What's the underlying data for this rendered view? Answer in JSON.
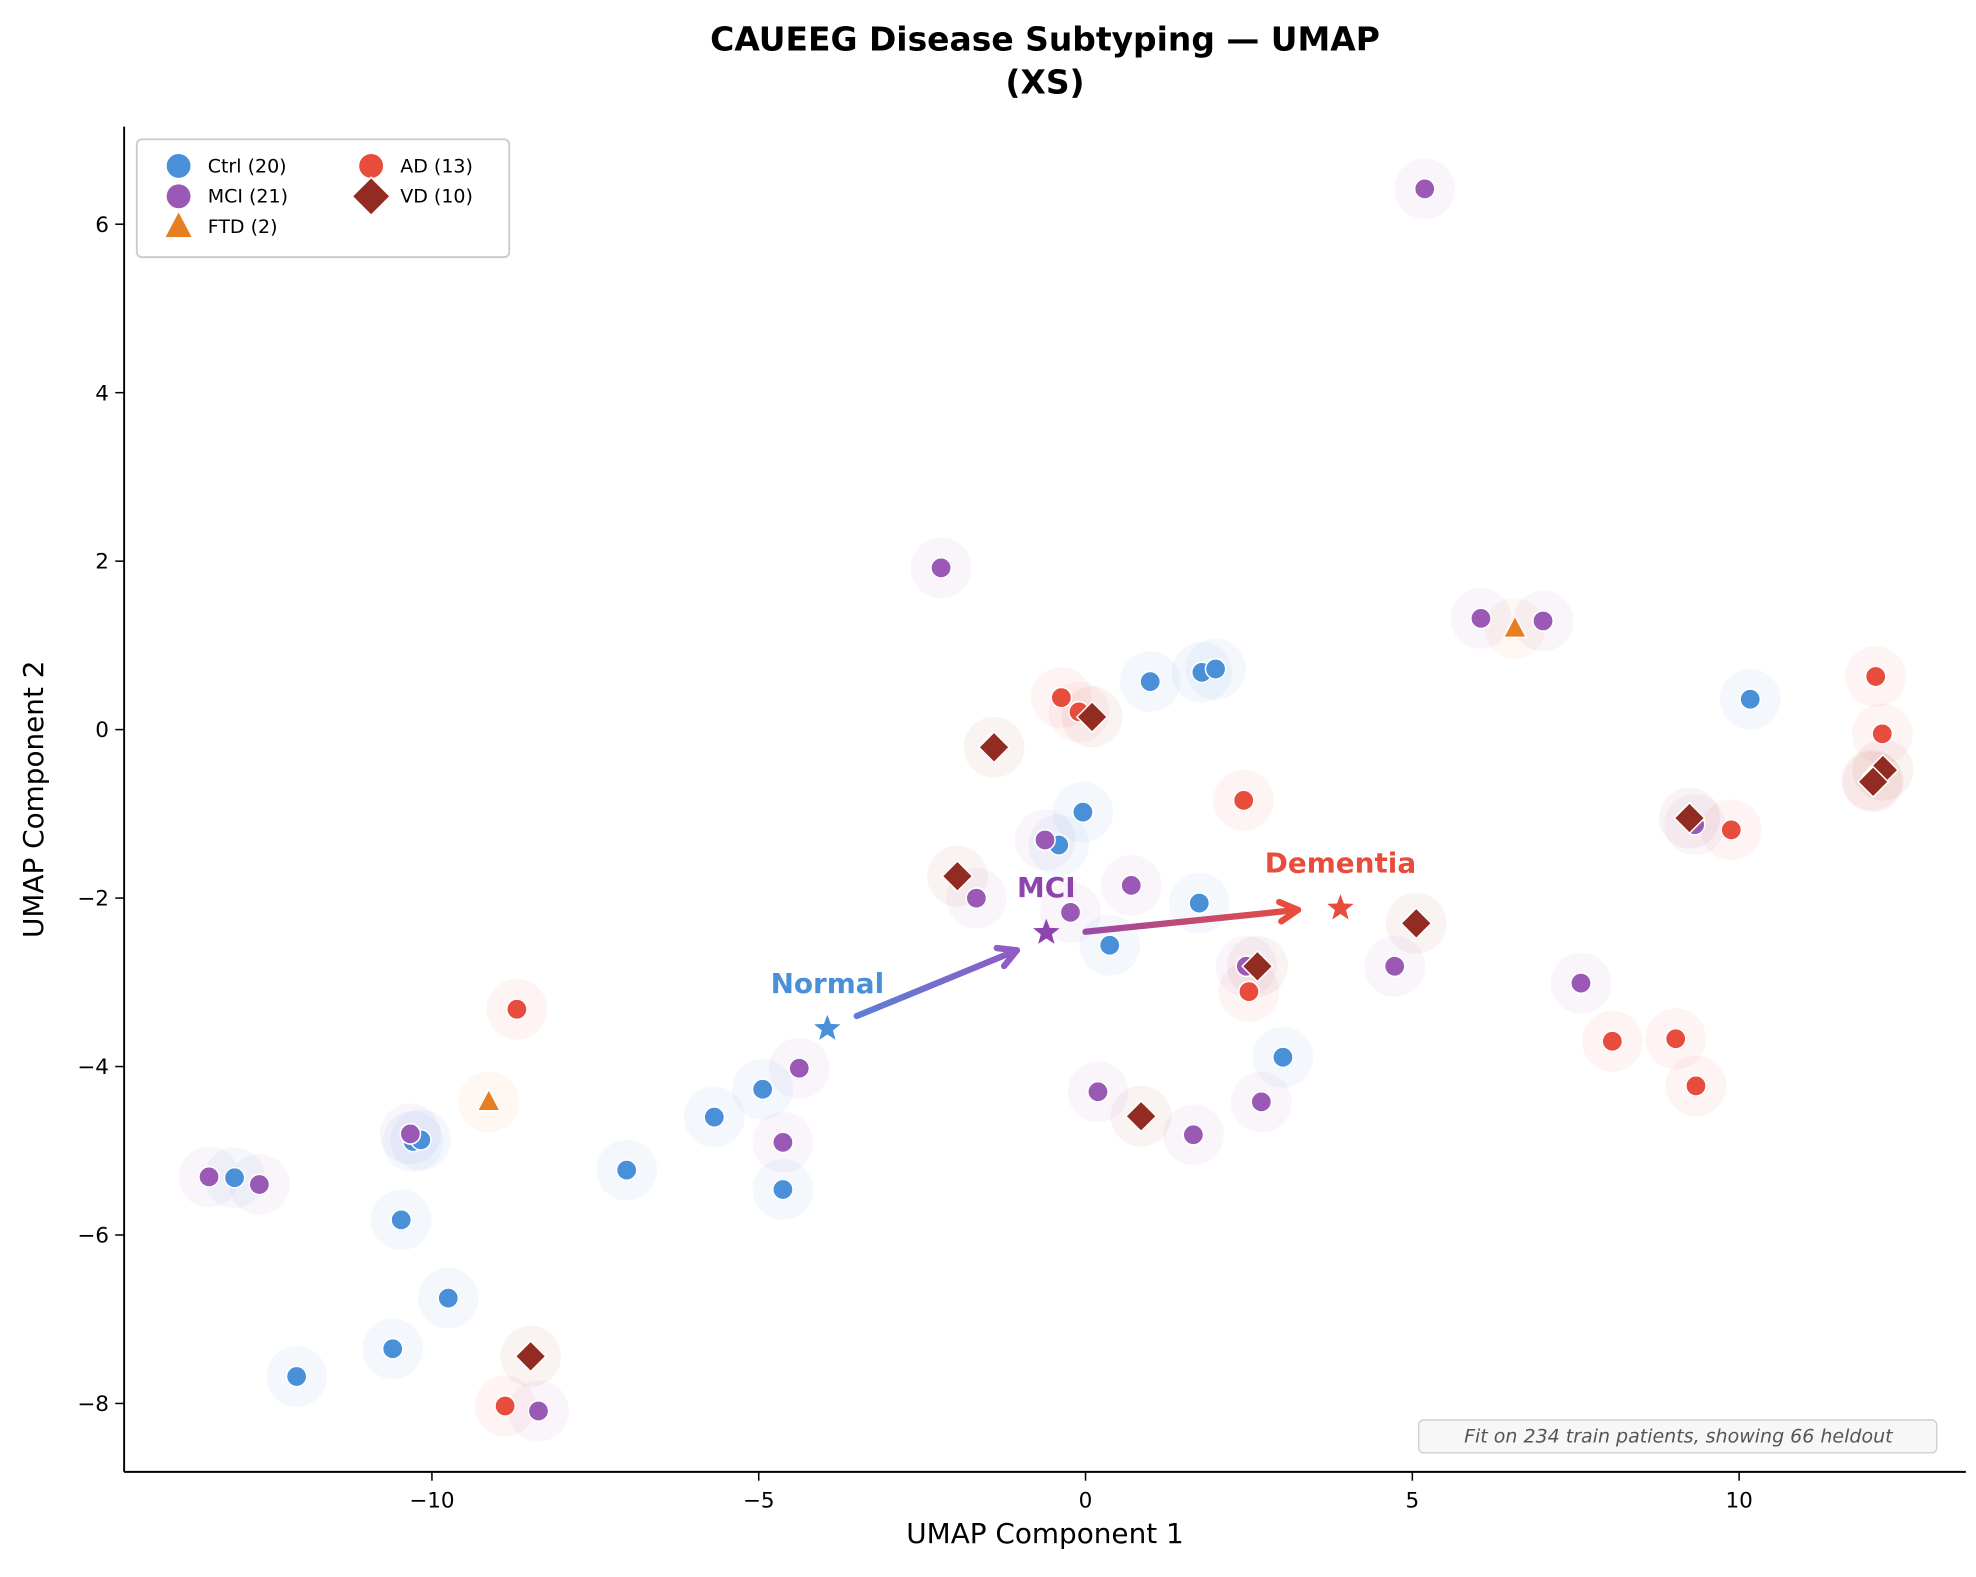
{
  "chart_data": {
    "type": "scatter",
    "title": "CAUEEG Disease Subtyping — UMAP",
    "subtitle": "(XS)",
    "xlabel": "UMAP Component 1",
    "ylabel": "UMAP Component 2",
    "xlim": [
      -14.7,
      13.5
    ],
    "ylim": [
      -8.8,
      7.15
    ],
    "xticks": [
      -10,
      -5,
      0,
      5,
      10
    ],
    "yticks": [
      -8,
      -6,
      -4,
      -2,
      0,
      2,
      4,
      6
    ],
    "xtick_labels": [
      "−10",
      "−5",
      "0",
      "5",
      "10"
    ],
    "ytick_labels": [
      "−8",
      "−6",
      "−4",
      "−2",
      "0",
      "2",
      "4",
      "6"
    ],
    "grid": false,
    "legend_position": "top-left",
    "series": [
      {
        "name": "Ctrl (20)",
        "marker": "circle",
        "color": "#4a90d9",
        "points": [
          [
            10.17,
            0.36
          ],
          [
            0.99,
            0.57
          ],
          [
            1.78,
            0.68
          ],
          [
            1.99,
            0.72
          ],
          [
            -0.04,
            -0.98
          ],
          [
            -0.41,
            -1.37
          ],
          [
            1.74,
            -2.06
          ],
          [
            0.37,
            -2.56
          ],
          [
            3.02,
            -3.89
          ],
          [
            -4.94,
            -4.27
          ],
          [
            -5.68,
            -4.6
          ],
          [
            -10.29,
            -4.89
          ],
          [
            -10.17,
            -4.87
          ],
          [
            -13.02,
            -5.32
          ],
          [
            -7.02,
            -5.23
          ],
          [
            -4.63,
            -5.46
          ],
          [
            -10.47,
            -5.82
          ],
          [
            -9.75,
            -6.75
          ],
          [
            -10.6,
            -7.35
          ],
          [
            -12.07,
            -7.68
          ]
        ]
      },
      {
        "name": "MCI (21)",
        "marker": "circle",
        "color": "#9b59b6",
        "points": [
          [
            5.19,
            6.42
          ],
          [
            -2.21,
            1.92
          ],
          [
            6.05,
            1.32
          ],
          [
            7.0,
            1.29
          ],
          [
            -0.62,
            -1.31
          ],
          [
            9.32,
            -1.13
          ],
          [
            0.7,
            -1.85
          ],
          [
            -1.67,
            -2.0
          ],
          [
            -0.23,
            -2.17
          ],
          [
            2.46,
            -2.81
          ],
          [
            4.73,
            -2.81
          ],
          [
            7.58,
            -3.01
          ],
          [
            -4.38,
            -4.02
          ],
          [
            0.19,
            -4.3
          ],
          [
            2.69,
            -4.42
          ],
          [
            -10.33,
            -4.8
          ],
          [
            -4.63,
            -4.9
          ],
          [
            1.65,
            -4.81
          ],
          [
            -13.41,
            -5.31
          ],
          [
            -12.64,
            -5.4
          ],
          [
            -8.37,
            -8.09
          ]
        ]
      },
      {
        "name": "FTD (2)",
        "marker": "triangle",
        "color": "#e67e22",
        "points": [
          [
            6.57,
            1.2
          ],
          [
            -9.13,
            -4.42
          ]
        ]
      },
      {
        "name": "AD (13)",
        "marker": "circle",
        "color": "#e74c3c",
        "points": [
          [
            12.09,
            0.63
          ],
          [
            12.19,
            -0.05
          ],
          [
            -0.37,
            0.38
          ],
          [
            -0.1,
            0.21
          ],
          [
            2.42,
            -0.84
          ],
          [
            9.88,
            -1.19
          ],
          [
            2.5,
            -3.11
          ],
          [
            -8.7,
            -3.32
          ],
          [
            8.06,
            -3.7
          ],
          [
            9.03,
            -3.67
          ],
          [
            9.34,
            -4.23
          ],
          [
            -8.88,
            -8.03
          ],
          [
            12.03,
            -0.6
          ]
        ]
      },
      {
        "name": "VD (10)",
        "marker": "diamond",
        "color": "#922b21",
        "points": [
          [
            0.1,
            0.15
          ],
          [
            -1.4,
            -0.21
          ],
          [
            9.24,
            -1.05
          ],
          [
            12.2,
            -0.48
          ],
          [
            12.05,
            -0.62
          ],
          [
            -1.96,
            -1.74
          ],
          [
            5.06,
            -2.3
          ],
          [
            2.63,
            -2.81
          ],
          [
            0.85,
            -4.59
          ],
          [
            -8.49,
            -7.44
          ]
        ]
      }
    ],
    "centroids": [
      {
        "label": "Normal",
        "color": "#4a90d9",
        "point": [
          -3.95,
          -3.55
        ]
      },
      {
        "label": "MCI",
        "color": "#8e44ad",
        "point": [
          -0.6,
          -2.41
        ]
      },
      {
        "label": "Dementia",
        "color": "#e74c3c",
        "point": [
          3.9,
          -2.12
        ]
      }
    ],
    "arrows": [
      {
        "from": [
          -3.5,
          -3.4
        ],
        "to": [
          -1.05,
          -2.62
        ],
        "color_start": "#5b7fd6",
        "color_end": "#8e5cc4"
      },
      {
        "from": [
          0.0,
          -2.4
        ],
        "to": [
          3.25,
          -2.14
        ],
        "color_start": "#9b4aa6",
        "color_end": "#e74c3c"
      }
    ],
    "annotation": "Fit on 234 train patients, showing 66 heldout"
  }
}
